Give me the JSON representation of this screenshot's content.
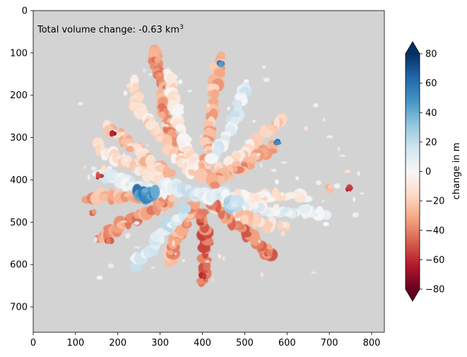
{
  "chart_data": {
    "type": "heatmap",
    "title": "",
    "xlabel": "",
    "ylabel": "",
    "xlim": [
      0,
      830
    ],
    "ylim": [
      760,
      0
    ],
    "x_ticks": [
      0,
      100,
      200,
      300,
      400,
      500,
      600,
      700,
      800
    ],
    "y_ticks": [
      0,
      100,
      200,
      300,
      400,
      500,
      600,
      700
    ],
    "background_color": "#d3d3d3",
    "grid": false,
    "annotation": {
      "prefix": "Total volume change: -0.63 km",
      "superscript": "3"
    },
    "colorbar": {
      "label": "change in m",
      "colormap": "RdBu",
      "range": [
        -80,
        80
      ],
      "ticks": [
        80,
        60,
        40,
        20,
        0,
        -20,
        -40,
        -60,
        -80
      ],
      "extend": "both",
      "stops": [
        "#67001f",
        "#b2182b",
        "#d6604d",
        "#f4a582",
        "#fddbc7",
        "#f7f7f7",
        "#d1e5f0",
        "#92c5de",
        "#4393c3",
        "#2166ac",
        "#053061"
      ]
    },
    "glacier_arms": [
      {
        "points": [
          [
            285,
            100
          ],
          [
            300,
            150
          ],
          [
            310,
            190
          ],
          [
            305,
            240
          ],
          [
            330,
            300
          ],
          [
            380,
            360
          ]
        ],
        "value": -35
      },
      {
        "points": [
          [
            235,
            170
          ],
          [
            250,
            230
          ],
          [
            290,
            290
          ],
          [
            345,
            350
          ],
          [
            385,
            390
          ]
        ],
        "value": -12
      },
      {
        "points": [
          [
            320,
            140
          ],
          [
            330,
            190
          ],
          [
            340,
            250
          ],
          [
            360,
            320
          ],
          [
            390,
            380
          ]
        ],
        "value": -10
      },
      {
        "points": [
          [
            440,
            110
          ],
          [
            430,
            180
          ],
          [
            420,
            260
          ],
          [
            410,
            340
          ],
          [
            400,
            390
          ]
        ],
        "value": -25
      },
      {
        "points": [
          [
            505,
            180
          ],
          [
            480,
            240
          ],
          [
            455,
            300
          ],
          [
            420,
            360
          ]
        ],
        "value": 8
      },
      {
        "points": [
          [
            590,
            250
          ],
          [
            540,
            300
          ],
          [
            480,
            350
          ],
          [
            420,
            390
          ]
        ],
        "value": -15
      },
      {
        "points": [
          [
            570,
            320
          ],
          [
            510,
            360
          ],
          [
            460,
            390
          ],
          [
            420,
            410
          ]
        ],
        "value": -30
      },
      {
        "points": [
          [
            640,
            440
          ],
          [
            560,
            440
          ],
          [
            490,
            440
          ],
          [
            430,
            440
          ]
        ],
        "value": -8
      },
      {
        "points": [
          [
            690,
            480
          ],
          [
            620,
            475
          ],
          [
            550,
            470
          ],
          [
            470,
            460
          ],
          [
            420,
            450
          ]
        ],
        "value": 5
      },
      {
        "points": [
          [
            600,
            510
          ],
          [
            530,
            500
          ],
          [
            470,
            480
          ],
          [
            420,
            460
          ]
        ],
        "value": -15
      },
      {
        "points": [
          [
            560,
            580
          ],
          [
            520,
            540
          ],
          [
            470,
            500
          ],
          [
            420,
            460
          ]
        ],
        "value": -40
      },
      {
        "points": [
          [
            400,
            640
          ],
          [
            410,
            570
          ],
          [
            405,
            520
          ],
          [
            395,
            470
          ]
        ],
        "value": -45
      },
      {
        "points": [
          [
            320,
            590
          ],
          [
            340,
            540
          ],
          [
            360,
            490
          ],
          [
            380,
            460
          ]
        ],
        "value": -30
      },
      {
        "points": [
          [
            240,
            600
          ],
          [
            280,
            560
          ],
          [
            320,
            510
          ],
          [
            360,
            470
          ]
        ],
        "value": 12
      },
      {
        "points": [
          [
            150,
            540
          ],
          [
            200,
            510
          ],
          [
            260,
            480
          ],
          [
            330,
            450
          ]
        ],
        "value": -35
      },
      {
        "points": [
          [
            130,
            440
          ],
          [
            190,
            440
          ],
          [
            260,
            440
          ],
          [
            330,
            440
          ]
        ],
        "value": -30
      },
      {
        "points": [
          [
            150,
            380
          ],
          [
            210,
            400
          ],
          [
            270,
            420
          ],
          [
            330,
            430
          ]
        ],
        "value": 5
      },
      {
        "points": [
          [
            150,
            320
          ],
          [
            200,
            350
          ],
          [
            260,
            380
          ],
          [
            320,
            410
          ]
        ],
        "value": -12
      },
      {
        "points": [
          [
            175,
            275
          ],
          [
            220,
            310
          ],
          [
            270,
            350
          ],
          [
            320,
            390
          ]
        ],
        "value": -20
      },
      {
        "points": [
          [
            300,
            410
          ],
          [
            340,
            420
          ],
          [
            380,
            430
          ],
          [
            420,
            440
          ],
          [
            460,
            430
          ]
        ],
        "value": 10
      },
      {
        "points": [
          [
            250,
            430
          ],
          [
            270,
            440
          ],
          [
            290,
            430
          ]
        ],
        "value": 50
      },
      {
        "points": [
          [
            460,
            450
          ],
          [
            470,
            460
          ],
          [
            480,
            455
          ]
        ],
        "value": 22
      }
    ],
    "hotspots": [
      {
        "x": 445,
        "y": 125,
        "value": 60
      },
      {
        "x": 575,
        "y": 310,
        "value": 65
      },
      {
        "x": 260,
        "y": 425,
        "value": 55
      },
      {
        "x": 190,
        "y": 290,
        "value": -75
      },
      {
        "x": 400,
        "y": 630,
        "value": -70
      },
      {
        "x": 555,
        "y": 570,
        "value": -55
      },
      {
        "x": 290,
        "y": 120,
        "value": -45
      },
      {
        "x": 155,
        "y": 390,
        "value": -65
      },
      {
        "x": 140,
        "y": 480,
        "value": -50
      },
      {
        "x": 180,
        "y": 545,
        "value": -55
      },
      {
        "x": 395,
        "y": 500,
        "value": -60
      },
      {
        "x": 325,
        "y": 575,
        "value": -45
      },
      {
        "x": 745,
        "y": 420,
        "value": -70
      },
      {
        "x": 700,
        "y": 420,
        "value": -35
      }
    ]
  }
}
